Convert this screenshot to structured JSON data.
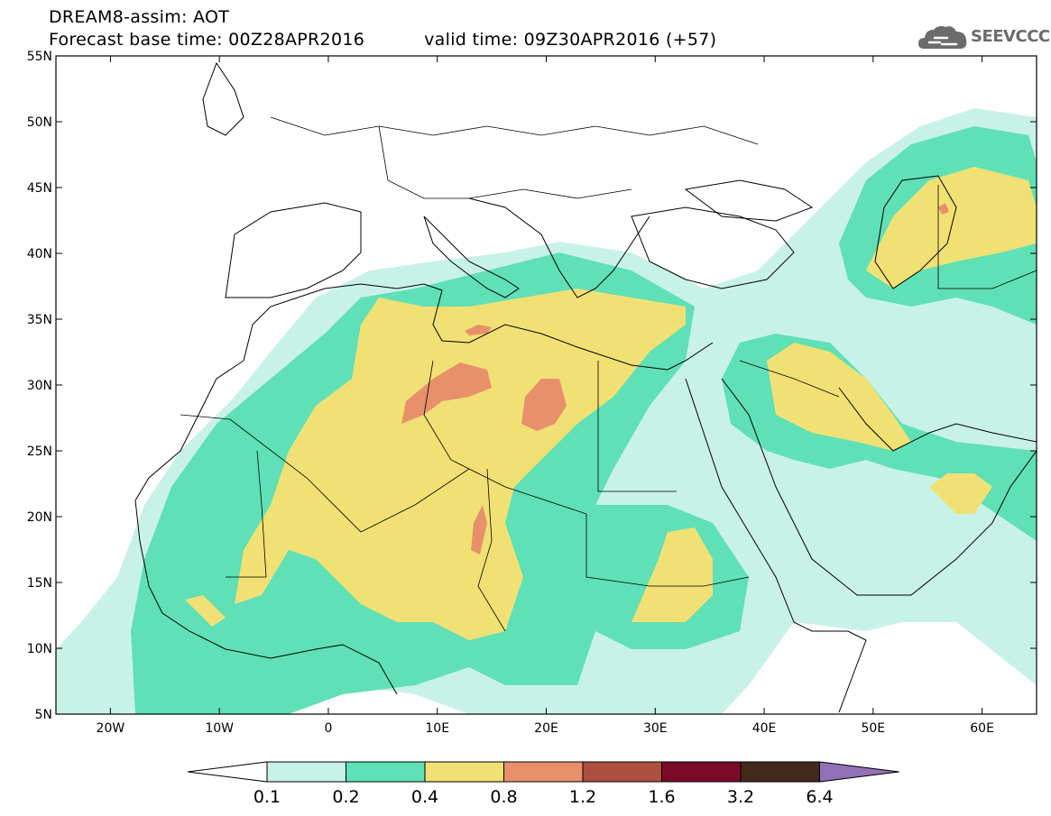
{
  "title": {
    "line1": "DREAM8-assim: AOT",
    "base_label": "Forecast base time: 00Z28APR2016",
    "valid_label": "valid time: 09Z30APR2016 (+57)"
  },
  "logo": {
    "text": "SEEVCCC",
    "icon": "cloud-icon"
  },
  "map": {
    "lon_range": [
      -25,
      65
    ],
    "lat_range": [
      5,
      55
    ],
    "lat_ticks": [
      {
        "value": 55,
        "label": "55N"
      },
      {
        "value": 50,
        "label": "50N"
      },
      {
        "value": 45,
        "label": "45N"
      },
      {
        "value": 40,
        "label": "40N"
      },
      {
        "value": 35,
        "label": "35N"
      },
      {
        "value": 30,
        "label": "30N"
      },
      {
        "value": 25,
        "label": "25N"
      },
      {
        "value": 20,
        "label": "20N"
      },
      {
        "value": 15,
        "label": "15N"
      },
      {
        "value": 10,
        "label": "10N"
      },
      {
        "value": 5,
        "label": "5N"
      }
    ],
    "lon_ticks": [
      {
        "value": -20,
        "label": "20W"
      },
      {
        "value": -10,
        "label": "10W"
      },
      {
        "value": 0,
        "label": "0"
      },
      {
        "value": 10,
        "label": "10E"
      },
      {
        "value": 20,
        "label": "20E"
      },
      {
        "value": 30,
        "label": "30E"
      },
      {
        "value": 40,
        "label": "40E"
      },
      {
        "value": 50,
        "label": "50E"
      },
      {
        "value": 60,
        "label": "60E"
      }
    ]
  },
  "colorbar": {
    "colors": {
      "below_min": "#ffffff",
      "bins": [
        "#c8f2e8",
        "#5fe0b6",
        "#f1e174",
        "#e8906b",
        "#ad4f3f",
        "#7a0a27",
        "#42291a"
      ],
      "above_max": "#9370b8"
    },
    "labels": [
      "0.1",
      "0.2",
      "0.4",
      "0.8",
      "1.2",
      "1.6",
      "3.2",
      "6.4"
    ]
  }
}
